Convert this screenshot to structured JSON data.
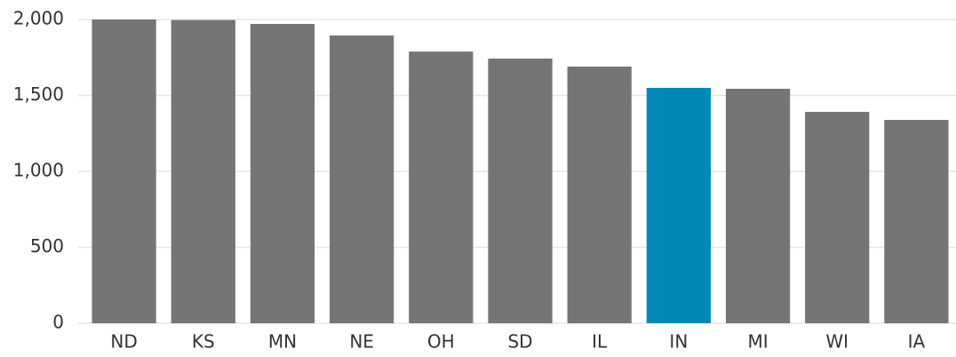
{
  "chart_data": {
    "type": "bar",
    "categories": [
      "ND",
      "KS",
      "MN",
      "NE",
      "OH",
      "SD",
      "IL",
      "IN",
      "MI",
      "WI",
      "IA"
    ],
    "values": [
      2000,
      1997,
      1971,
      1895,
      1789,
      1743,
      1690,
      1550,
      1544,
      1392,
      1339
    ],
    "colors": [
      "#757575",
      "#757575",
      "#757575",
      "#757575",
      "#757575",
      "#757575",
      "#757575",
      "#0089b4",
      "#757575",
      "#757575",
      "#757575"
    ],
    "ylim": [
      0,
      2000
    ],
    "yticks": [
      0,
      500,
      {
        "value": 1000,
        "label": "1,000"
      },
      {
        "value": 1500,
        "label": "1,500"
      },
      {
        "value": 2000,
        "label": "2,000"
      }
    ],
    "grid": true
  }
}
